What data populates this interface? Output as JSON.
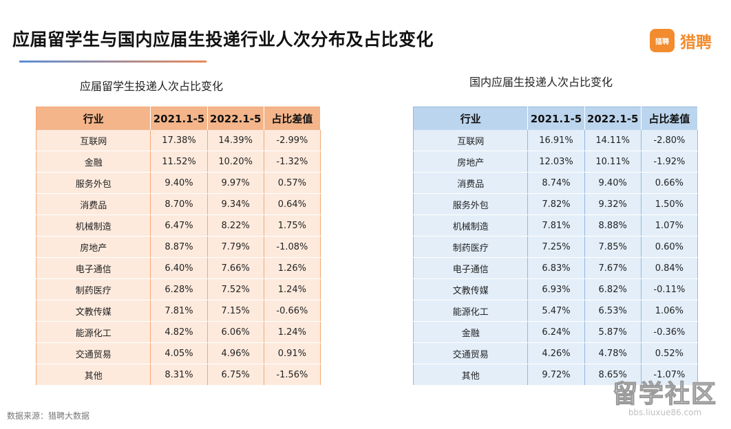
{
  "title": "应届留学生与国内应届生投递行业人次分布及占比变化",
  "logo": {
    "badge": "猎聘",
    "text": "猎聘"
  },
  "left_table": {
    "subtitle": "应届留学生投递人次占比变化",
    "headers": [
      "行业",
      "2021.1-5",
      "2022.1-5",
      "占比差值"
    ],
    "rows": [
      [
        "互联网",
        "17.38%",
        "14.39%",
        "-2.99%"
      ],
      [
        "金融",
        "11.52%",
        "10.20%",
        "-1.32%"
      ],
      [
        "服务外包",
        "9.40%",
        "9.97%",
        "0.57%"
      ],
      [
        "消费品",
        "8.70%",
        "9.34%",
        "0.64%"
      ],
      [
        "机械制造",
        "6.47%",
        "8.22%",
        "1.75%"
      ],
      [
        "房地产",
        "8.87%",
        "7.79%",
        "-1.08%"
      ],
      [
        "电子通信",
        "6.40%",
        "7.66%",
        "1.26%"
      ],
      [
        "制药医疗",
        "6.28%",
        "7.52%",
        "1.24%"
      ],
      [
        "文教传媒",
        "7.81%",
        "7.15%",
        "-0.66%"
      ],
      [
        "能源化工",
        "4.82%",
        "6.06%",
        "1.24%"
      ],
      [
        "交通贸易",
        "4.05%",
        "4.96%",
        "0.91%"
      ],
      [
        "其他",
        "8.31%",
        "6.75%",
        "-1.56%"
      ]
    ]
  },
  "right_table": {
    "subtitle": "国内应届生投递人次占比变化",
    "headers": [
      "行业",
      "2021.1-5",
      "2022.1-5",
      "占比差值"
    ],
    "rows": [
      [
        "互联网",
        "16.91%",
        "14.11%",
        "-2.80%"
      ],
      [
        "房地产",
        "12.03%",
        "10.11%",
        "-1.92%"
      ],
      [
        "消费品",
        "8.74%",
        "9.40%",
        "0.66%"
      ],
      [
        "服务外包",
        "7.82%",
        "9.32%",
        "1.50%"
      ],
      [
        "机械制造",
        "7.81%",
        "8.88%",
        "1.07%"
      ],
      [
        "制药医疗",
        "7.25%",
        "7.85%",
        "0.60%"
      ],
      [
        "电子通信",
        "6.83%",
        "7.67%",
        "0.84%"
      ],
      [
        "文教传媒",
        "6.93%",
        "6.82%",
        "-0.11%"
      ],
      [
        "能源化工",
        "5.47%",
        "6.53%",
        "1.06%"
      ],
      [
        "金融",
        "6.24%",
        "5.87%",
        "-0.36%"
      ],
      [
        "交通贸易",
        "4.26%",
        "4.78%",
        "0.52%"
      ],
      [
        "其他",
        "9.72%",
        "8.65%",
        "-1.07%"
      ]
    ]
  },
  "source": "数据来源：猎聘大数据",
  "watermark": {
    "main": "留学社区",
    "sub": "bbs.liuxue86.com"
  }
}
